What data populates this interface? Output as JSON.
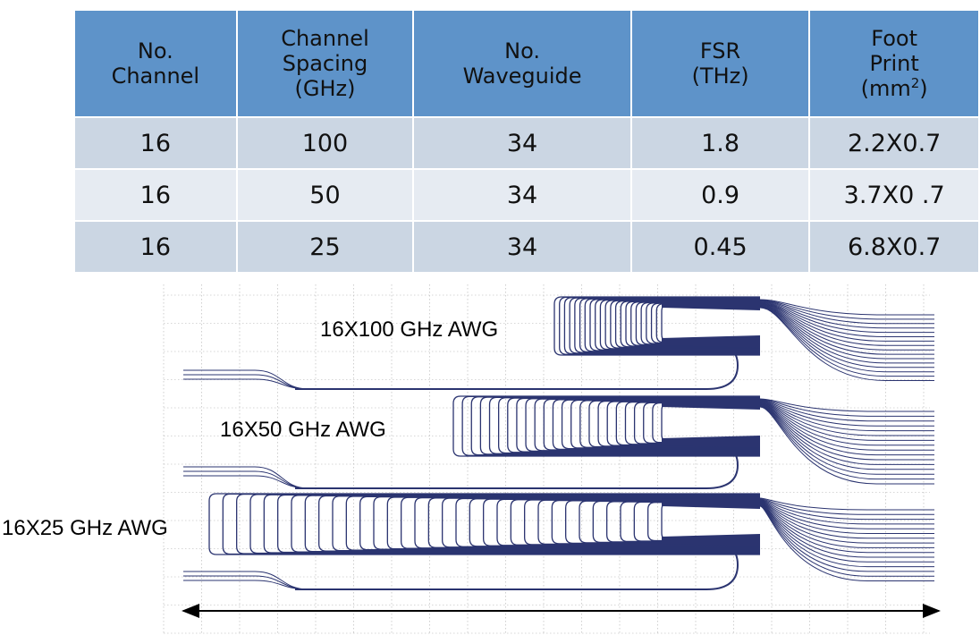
{
  "table": {
    "headers": [
      [
        "No.",
        "Channel"
      ],
      [
        "Channel",
        "Spacing",
        "(GHz)"
      ],
      [
        "No.",
        "Waveguide"
      ],
      [
        "FSR",
        "(THz)"
      ],
      [
        "Foot",
        "Print",
        "(mm",
        "2",
        ")"
      ]
    ],
    "rows": [
      [
        "16",
        "100",
        "34",
        "1.8",
        "2.2X0.7"
      ],
      [
        "16",
        "50",
        "34",
        "0.9",
        "3.7X0 .7"
      ],
      [
        "16",
        "25",
        "34",
        "0.45",
        "6.8X0.7"
      ]
    ]
  },
  "figure": {
    "labels": [
      "16X100 GHz AWG",
      "16X50 GHz AWG",
      "16X25 GHz AWG"
    ],
    "colors": {
      "waveguide": "#2b3470",
      "grid": "#b0b0b0",
      "header_bg": "#5e93c9",
      "row_odd_bg": "#cbd6e3",
      "row_even_bg": "#e6ebf2"
    }
  }
}
